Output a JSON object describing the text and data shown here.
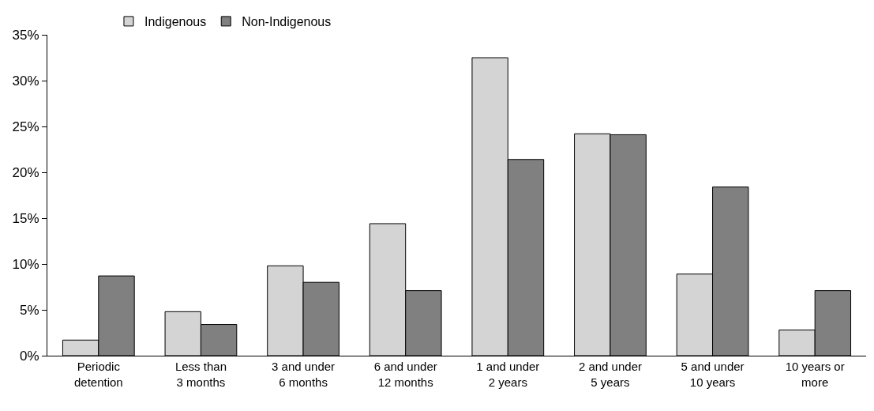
{
  "chart_data": {
    "type": "bar",
    "categories": [
      "Periodic\ndetention",
      "Less than\n3 months",
      "3 and under\n6 months",
      "6 and under\n12 months",
      "1 and under\n2 years",
      "2 and under\n5 years",
      "5 and under\n10 years",
      "10 years or\nmore"
    ],
    "series": [
      {
        "name": "Indigenous",
        "color": "#d4d4d4",
        "values": [
          1.7,
          4.8,
          9.8,
          14.4,
          32.5,
          24.2,
          8.9,
          2.8
        ]
      },
      {
        "name": "Non-Indigenous",
        "color": "#808080",
        "values": [
          8.7,
          3.4,
          8.0,
          7.1,
          21.4,
          24.1,
          18.4,
          7.1
        ]
      }
    ],
    "ylim": [
      0,
      35
    ],
    "yticks": [
      {
        "value": 0,
        "label": "0%"
      },
      {
        "value": 5,
        "label": "5%"
      },
      {
        "value": 10,
        "label": "10%"
      },
      {
        "value": 15,
        "label": "15%"
      },
      {
        "value": 20,
        "label": "20%"
      },
      {
        "value": 25,
        "label": "25%"
      },
      {
        "value": 30,
        "label": "30%"
      },
      {
        "value": 35,
        "label": "35%"
      }
    ],
    "grid": false,
    "legend": "top left"
  }
}
